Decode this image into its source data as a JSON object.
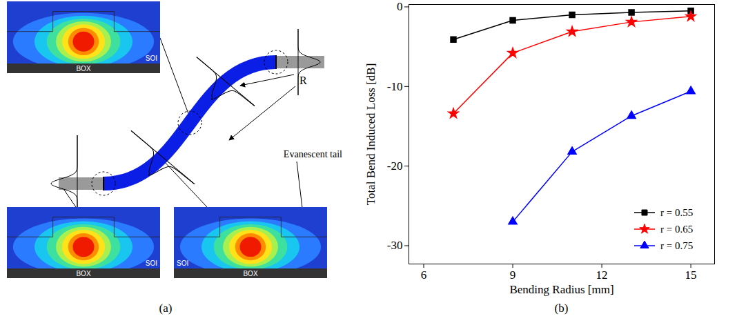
{
  "diagram": {
    "panel_label": "(a)",
    "radius_label": "R",
    "tail_label": "Evanescent tail",
    "insets": [
      {
        "labels": [
          "SOI",
          "BOX"
        ]
      },
      {
        "labels": [
          "SOI",
          "BOX"
        ]
      },
      {
        "labels": [
          "SOI",
          "BOX"
        ]
      }
    ]
  },
  "chart_data": {
    "type": "line",
    "panel_label": "(b)",
    "x_label": "Bending Radius [mm]",
    "y_label": "Total Bend Induced Loss [dB]",
    "x": [
      7,
      9,
      11,
      13,
      15
    ],
    "series": [
      {
        "name": "r = 0.55",
        "color": "#000000",
        "marker": "square",
        "line_style": "solid",
        "values": [
          -4.1,
          -1.7,
          -1.0,
          -0.7,
          -0.5
        ]
      },
      {
        "name": "r = 0.65",
        "color": "#ff0000",
        "marker": "star",
        "line_style": "solid",
        "values": [
          -13.4,
          -5.8,
          -3.1,
          -1.9,
          -1.2
        ]
      },
      {
        "name": "r = 0.75",
        "color": "#0000ff",
        "marker": "triangle",
        "line_style": "solid",
        "values": [
          null,
          -27.0,
          -18.2,
          -13.7,
          -10.6
        ]
      }
    ],
    "xlim": [
      5.5,
      15.8
    ],
    "ylim": [
      -32.3,
      0.3
    ],
    "xticks": [
      6,
      9,
      12,
      15
    ],
    "yticks": [
      -30,
      -20,
      -10,
      0
    ],
    "grid": false,
    "legend": "lower right"
  }
}
